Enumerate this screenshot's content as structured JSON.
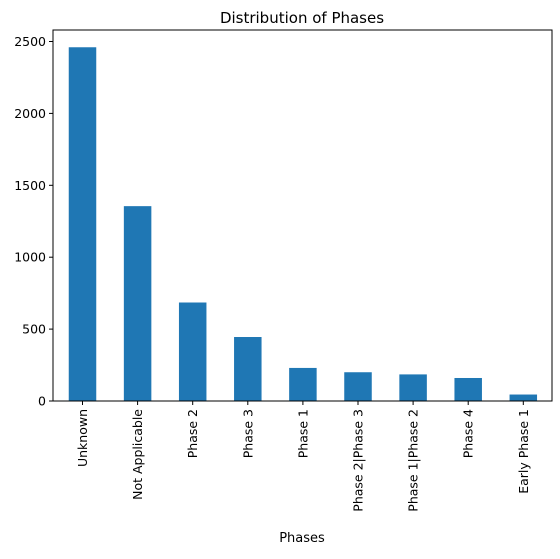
{
  "chart_data": {
    "type": "bar",
    "title": "Distribution of Phases",
    "xlabel": "Phases",
    "ylabel": "",
    "categories": [
      "Unknown",
      "Not Applicable",
      "Phase 2",
      "Phase 3",
      "Phase 1",
      "Phase 2|Phase 3",
      "Phase 1|Phase 2",
      "Phase 4",
      "Early Phase 1"
    ],
    "values": [
      2460,
      1355,
      685,
      445,
      230,
      200,
      185,
      160,
      45
    ],
    "ylim": [
      0,
      2580
    ],
    "yticks": [
      0,
      500,
      1000,
      1500,
      2000,
      2500
    ],
    "ytick_labels": [
      "0",
      "500",
      "1000",
      "1500",
      "2000",
      "2500"
    ],
    "bar_color": "#1f77b4",
    "grid": false,
    "legend": "none"
  }
}
